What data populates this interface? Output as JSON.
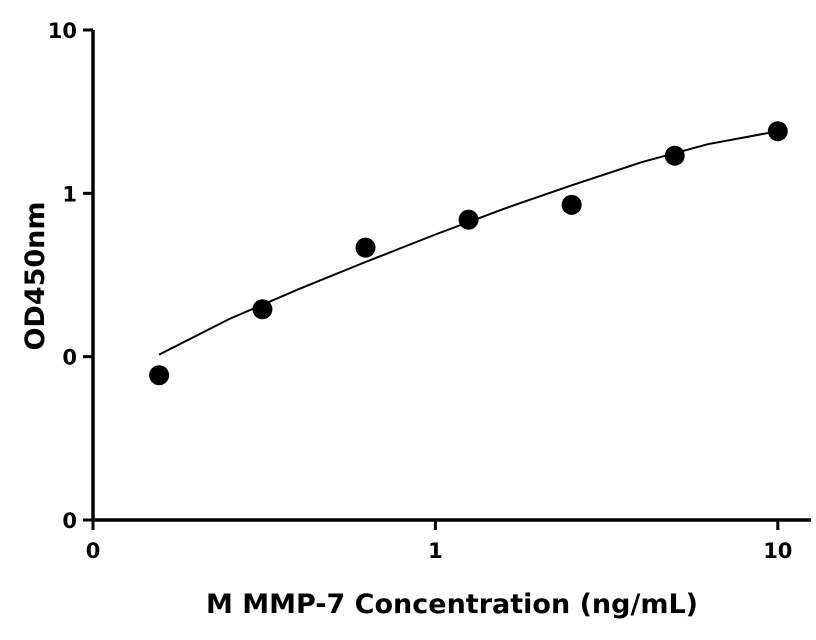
{
  "chart_data": {
    "type": "scatter",
    "title": "",
    "xlabel": "M MMP-7 Concentration (ng/mL)",
    "ylabel": "OD450nm",
    "x_scale": "log",
    "y_scale": "log",
    "xlim": [
      0.1,
      12.5
    ],
    "ylim": [
      0.01,
      10
    ],
    "x_ticks": [
      {
        "value": 0.1,
        "label": "0"
      },
      {
        "value": 1,
        "label": "1"
      },
      {
        "value": 10,
        "label": "10"
      }
    ],
    "y_ticks": [
      {
        "value": 0.01,
        "label": "0"
      },
      {
        "value": 0.1,
        "label": "0"
      },
      {
        "value": 1,
        "label": "1"
      },
      {
        "value": 10,
        "label": "10"
      }
    ],
    "points": [
      {
        "x": 0.156,
        "y": 0.077
      },
      {
        "x": 0.3125,
        "y": 0.195
      },
      {
        "x": 0.625,
        "y": 0.465
      },
      {
        "x": 1.25,
        "y": 0.69
      },
      {
        "x": 2.5,
        "y": 0.85
      },
      {
        "x": 5,
        "y": 1.7
      },
      {
        "x": 10,
        "y": 2.4
      }
    ],
    "fit": {
      "type": "power",
      "x": [
        0.156,
        0.25,
        0.4,
        0.625,
        1,
        1.6,
        2.5,
        4,
        6.25,
        10
      ],
      "y": [
        0.103,
        0.17,
        0.26,
        0.38,
        0.56,
        0.81,
        1.12,
        1.55,
        2.0,
        2.4
      ]
    },
    "grid": false,
    "legend": "none"
  }
}
